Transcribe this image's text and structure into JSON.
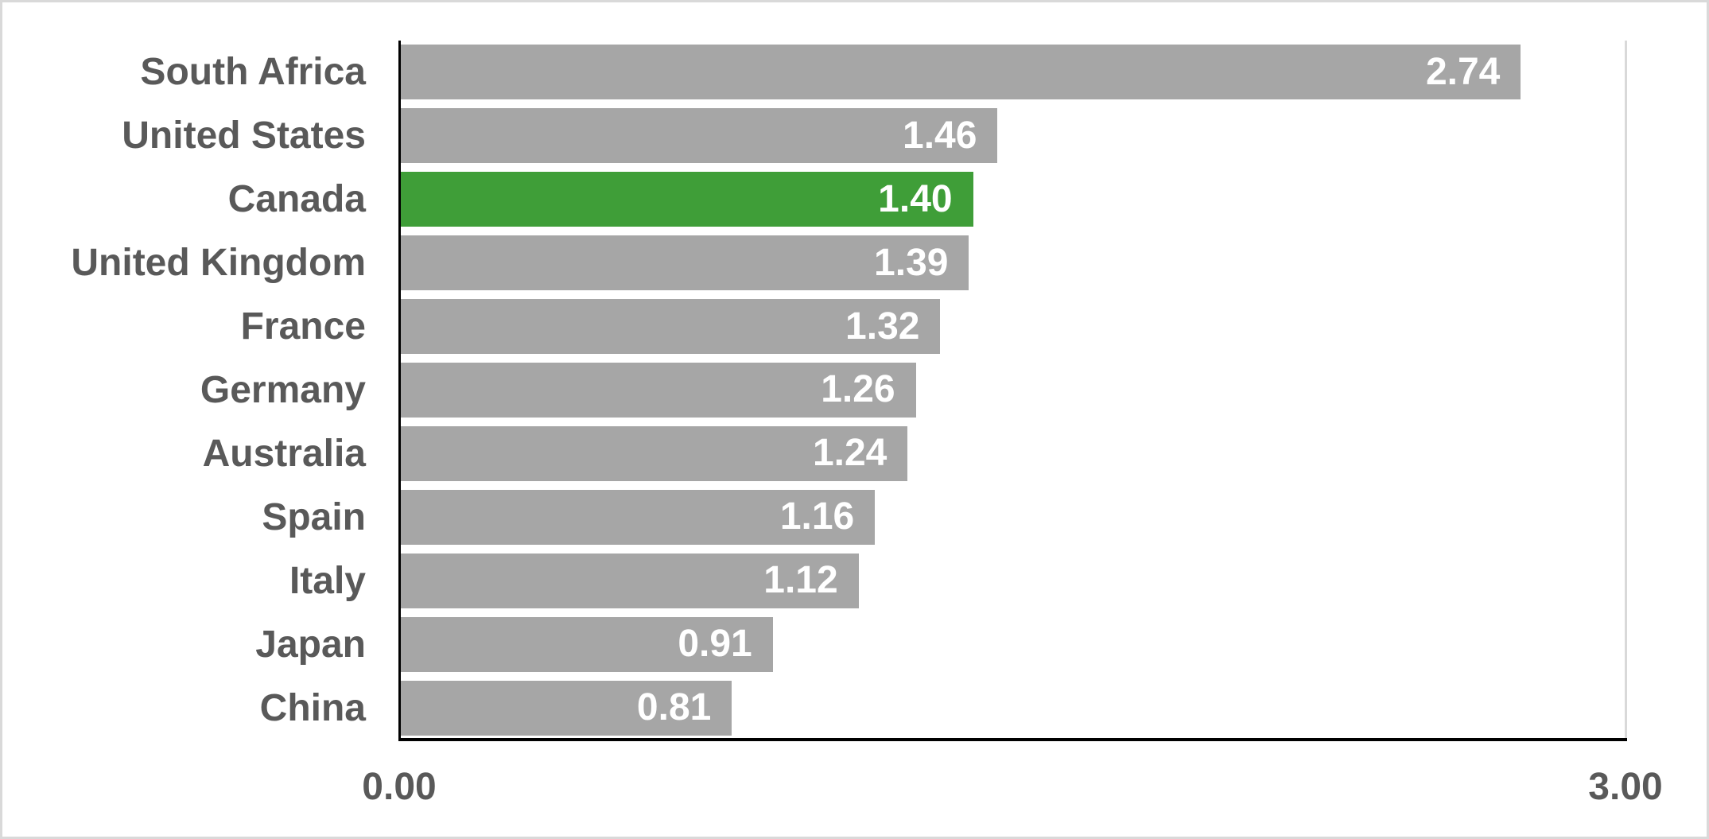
{
  "chart_data": {
    "type": "bar",
    "orientation": "horizontal",
    "categories": [
      "South Africa",
      "United States",
      "Canada",
      "United Kingdom",
      "France",
      "Germany",
      "Australia",
      "Spain",
      "Italy",
      "Japan",
      "China"
    ],
    "values": [
      2.74,
      1.46,
      1.4,
      1.39,
      1.32,
      1.26,
      1.24,
      1.16,
      1.12,
      0.91,
      0.81
    ],
    "value_labels": [
      "2.74",
      "1.46",
      "1.40",
      "1.39",
      "1.32",
      "1.26",
      "1.24",
      "1.16",
      "1.12",
      "0.91",
      "0.81"
    ],
    "highlighted_category": "Canada",
    "xlim": [
      0,
      3
    ],
    "x_ticks": [
      "0.00",
      "3.00"
    ],
    "grid": "single vertical gridline at x-axis max, right of plot",
    "legend": "none",
    "data_labels": "inside end of bars, white bold",
    "colors": {
      "bar": "#a6a6a6",
      "highlight": "#3f9e38",
      "category_text": "#595959",
      "value_text": "#ffffff",
      "axis": "#000000",
      "gridline": "#d9d9d9",
      "border": "#d9d9d9"
    }
  }
}
